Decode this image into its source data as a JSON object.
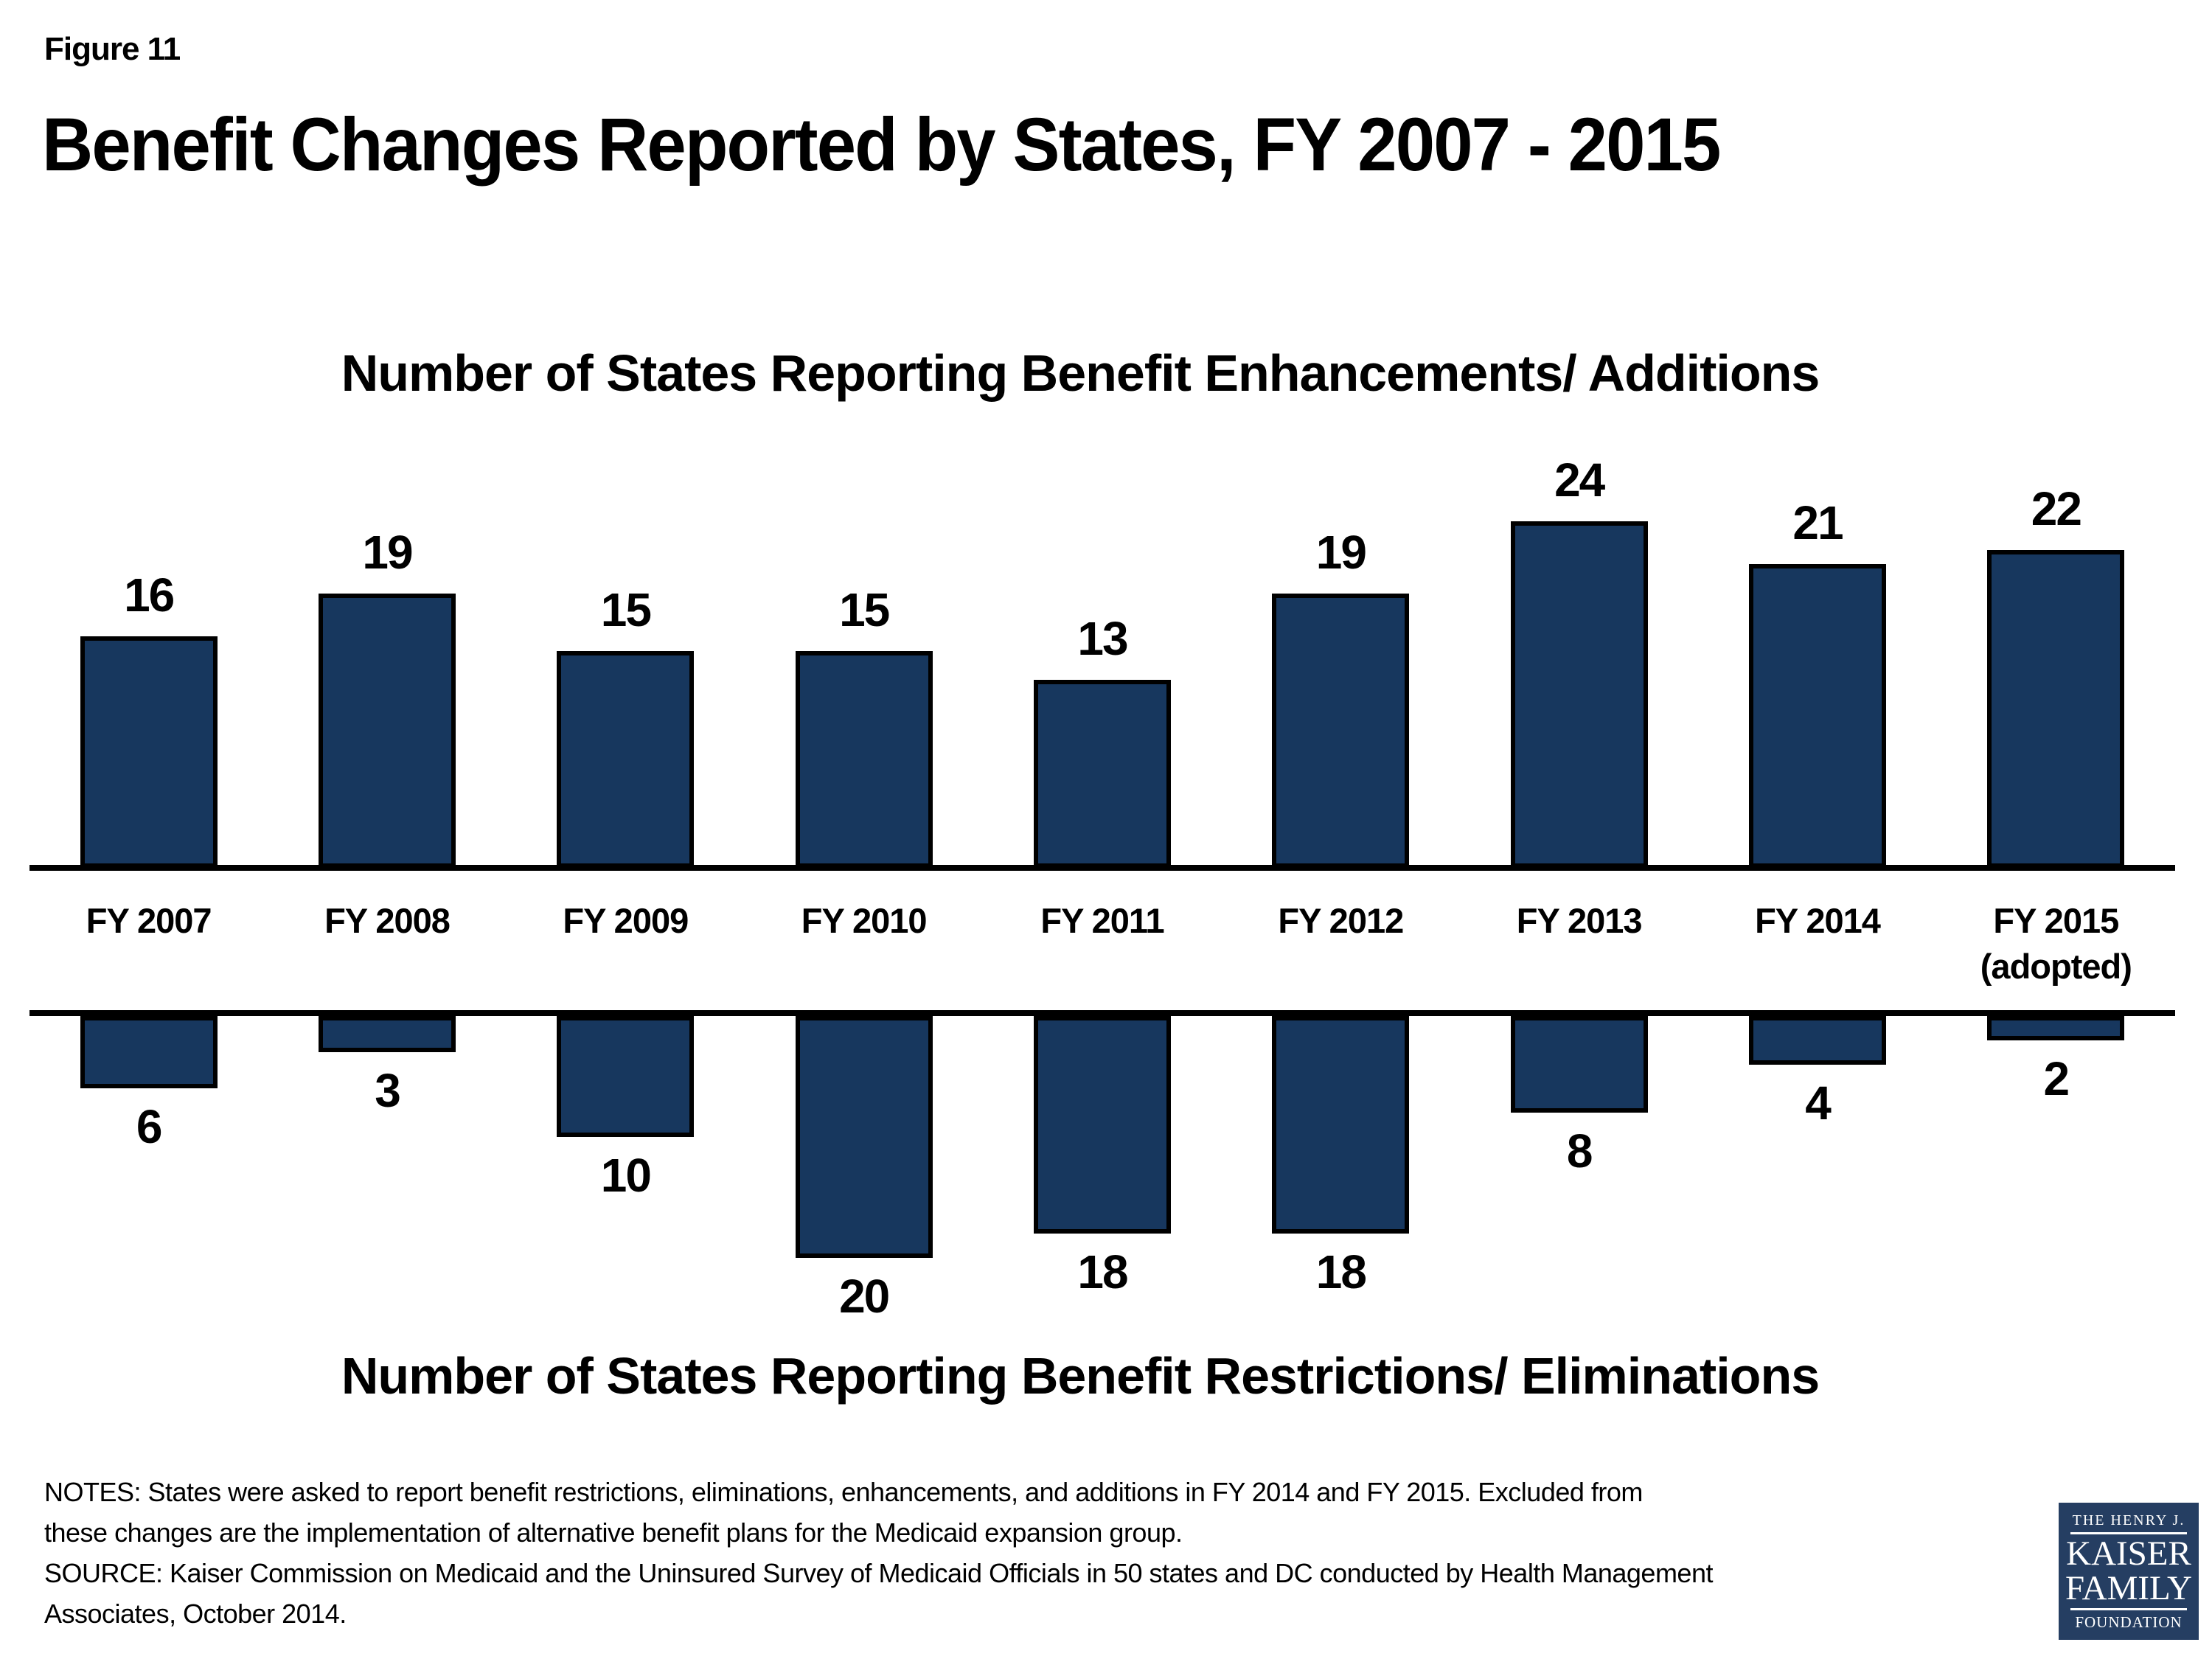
{
  "figure_label": "Figure 11",
  "title": "Benefit Changes Reported by States, FY 2007 - 2015",
  "chart_data": {
    "type": "bar",
    "orientation": "diverging-vertical",
    "grid": false,
    "value_labels_shown": true,
    "categories": [
      "FY 2007",
      "FY 2008",
      "FY 2009",
      "FY 2010",
      "FY 2011",
      "FY 2012",
      "FY 2013",
      "FY 2014",
      "FY 2015"
    ],
    "category_sublabels": [
      "",
      "",
      "",
      "",
      "",
      "",
      "",
      "",
      "(adopted)"
    ],
    "series": [
      {
        "name": "Number of States Reporting Benefit Enhancements/ Additions",
        "direction": "up",
        "values": [
          16,
          19,
          15,
          15,
          13,
          19,
          24,
          21,
          22
        ]
      },
      {
        "name": "Number of States Reporting Benefit Restrictions/ Eliminations",
        "direction": "down",
        "values": [
          6,
          3,
          10,
          20,
          18,
          18,
          8,
          4,
          2
        ]
      }
    ],
    "colors": {
      "bar_fill": "#17375E",
      "bar_border": "#000000",
      "axis_line": "#000000",
      "text": "#000000"
    }
  },
  "notes": {
    "lines": [
      "NOTES: States were asked to report benefit restrictions, eliminations, enhancements, and additions in FY 2014 and FY 2015. Excluded from",
      "these changes are the implementation of alternative benefit plans for the Medicaid expansion group.",
      "SOURCE: Kaiser Commission on Medicaid and the Uninsured Survey of Medicaid Officials in 50 states and DC conducted by Health Management",
      "Associates, October 2014."
    ]
  },
  "logo": {
    "line1": "THE HENRY J.",
    "line2": "KAISER",
    "line3": "FAMILY",
    "line4": "FOUNDATION",
    "bg_color": "#253E62",
    "fg_color": "#FFFFFF"
  }
}
